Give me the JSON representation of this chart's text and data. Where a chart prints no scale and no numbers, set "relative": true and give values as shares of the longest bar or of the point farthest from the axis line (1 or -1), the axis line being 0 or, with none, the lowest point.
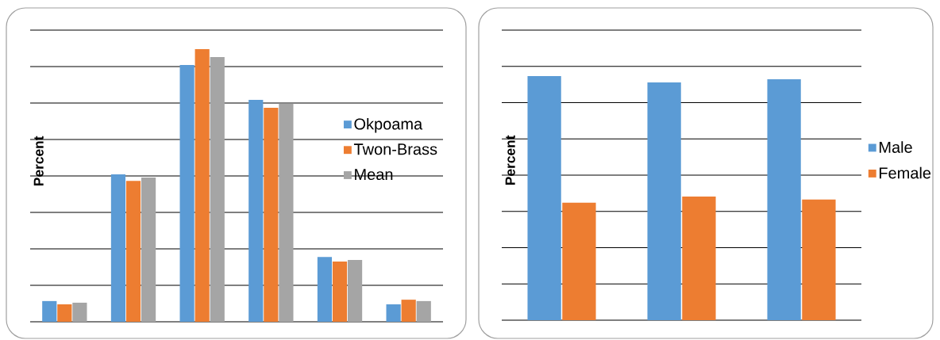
{
  "chart_data": [
    {
      "type": "bar",
      "ylabel": "Percent",
      "relative": true,
      "grid": "y",
      "legend": "right",
      "categories": [
        null,
        null,
        null,
        null,
        null,
        null
      ],
      "series": [
        {
          "name": "Okpoama",
          "color": "#5b9bd5",
          "values": [
            0.076,
            0.541,
            0.942,
            0.814,
            0.238,
            0.064
          ]
        },
        {
          "name": "Twon-Brass",
          "color": "#ed7d31",
          "values": [
            0.064,
            0.517,
            1,
            0.785,
            0.221,
            0.081
          ]
        },
        {
          "name": "Mean",
          "color": "#a5a5a5",
          "values": [
            0.07,
            0.529,
            0.971,
            0.8,
            0.227,
            0.076
          ]
        }
      ]
    },
    {
      "type": "bar",
      "ylabel": "Percent",
      "relative": true,
      "grid": "y",
      "legend": "right",
      "categories": [
        null,
        null,
        null
      ],
      "series": [
        {
          "name": "Male",
          "color": "#5b9bd5",
          "values": [
            1,
            0.974,
            0.987
          ]
        },
        {
          "name": "Female",
          "color": "#ed7d31",
          "values": [
            0.481,
            0.506,
            0.494
          ]
        }
      ]
    }
  ]
}
